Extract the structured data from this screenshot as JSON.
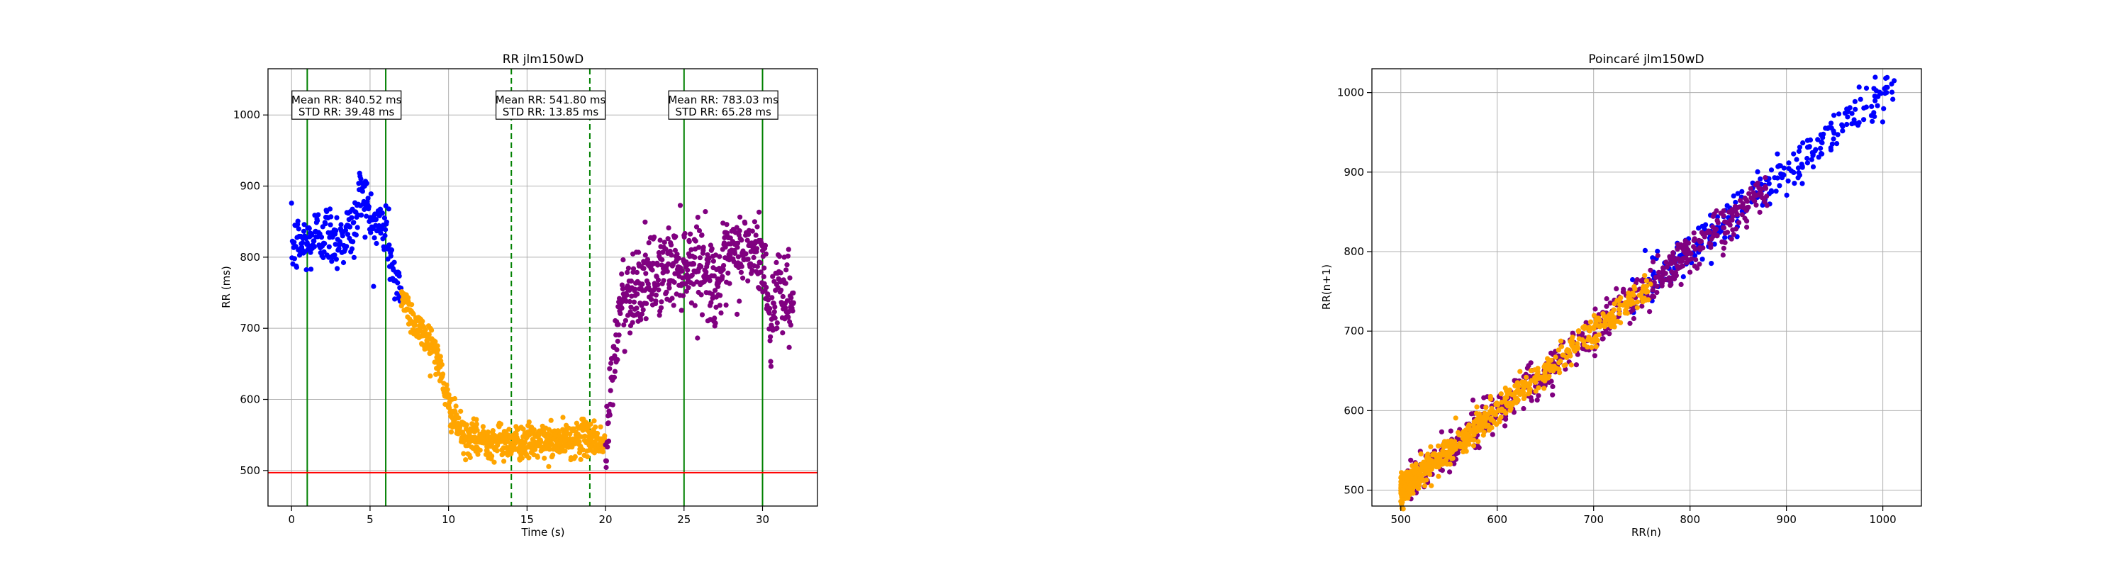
{
  "chart_data": [
    {
      "type": "scatter",
      "title": "RR jlm150wD",
      "xlabel": "Time (s)",
      "ylabel": "RR (ms)",
      "xlim": [
        -1.5,
        33.5
      ],
      "ylim": [
        450,
        1065
      ],
      "xticks": [
        0,
        5,
        10,
        15,
        20,
        25,
        30
      ],
      "yticks": [
        500,
        600,
        700,
        800,
        900,
        1000
      ],
      "grid": true,
      "colors": {
        "phase1": "#0000ff",
        "phase2": "#ffa500",
        "phase3": "#800080",
        "solid_lines": "#008000",
        "threshold": "#ff0000"
      },
      "threshold_line": 497,
      "window_lines_solid": [
        1,
        6,
        25,
        30
      ],
      "window_lines_dashed": [
        14,
        19
      ],
      "annotations": [
        {
          "x": 3.5,
          "y": 1010,
          "line1": "Mean RR: 840.52 ms",
          "line2": "STD RR: 39.48 ms"
        },
        {
          "x": 16.5,
          "y": 1010,
          "line1": "Mean RR: 541.80 ms",
          "line2": "STD RR: 13.85 ms"
        },
        {
          "x": 27.5,
          "y": 1010,
          "line1": "Mean RR: 783.03 ms",
          "line2": "STD RR: 65.28 ms"
        }
      ],
      "series": [
        {
          "color": "#0000ff",
          "x_range": [
            0,
            7
          ],
          "baseline": [
            [
              0,
              815
            ],
            [
              1,
              820
            ],
            [
              2,
              835
            ],
            [
              3,
              825
            ],
            [
              4,
              840
            ],
            [
              4.5,
              905
            ],
            [
              5,
              850
            ],
            [
              6,
              840
            ],
            [
              6.5,
              780
            ],
            [
              7,
              730
            ]
          ],
          "noise": 22,
          "n": 260
        },
        {
          "color": "#ffa500",
          "x_range": [
            7,
            20
          ],
          "baseline": [
            [
              7,
              750
            ],
            [
              8,
              700
            ],
            [
              9,
              680
            ],
            [
              9.5,
              640
            ],
            [
              10,
              590
            ],
            [
              11,
              545
            ],
            [
              14,
              540
            ],
            [
              17,
              540
            ],
            [
              19,
              548
            ],
            [
              20,
              535
            ]
          ],
          "noise": 12,
          "n": 700
        },
        {
          "color": "#800080",
          "x_range": [
            20,
            32
          ],
          "baseline": [
            [
              20,
              520
            ],
            [
              20.5,
              650
            ],
            [
              21,
              740
            ],
            [
              22,
              760
            ],
            [
              23,
              770
            ],
            [
              24,
              785
            ],
            [
              25,
              790
            ],
            [
              26,
              795
            ],
            [
              27,
              760
            ],
            [
              28,
              800
            ],
            [
              29,
              810
            ],
            [
              30,
              800
            ],
            [
              30.5,
              700
            ],
            [
              31,
              770
            ],
            [
              32,
              730
            ]
          ],
          "noise": 28,
          "n": 600
        }
      ]
    },
    {
      "type": "scatter",
      "title": "Poincaré jlm150wD",
      "xlabel": "RR(n)",
      "ylabel": "RR(n+1)",
      "xlim": [
        470,
        1040
      ],
      "ylim": [
        480,
        1030
      ],
      "xticks": [
        500,
        600,
        700,
        800,
        900,
        1000
      ],
      "yticks": [
        500,
        600,
        700,
        800,
        900,
        1000
      ],
      "grid": true,
      "series": [
        {
          "color": "#0000ff",
          "x_range": [
            740,
            1015
          ],
          "noise": 14,
          "n": 260
        },
        {
          "color": "#800080",
          "x_range": [
            500,
            880
          ],
          "noise": 12,
          "n": 600
        },
        {
          "color": "#ffa500",
          "x_range": [
            500,
            760
          ],
          "noise": 9,
          "n": 700
        }
      ]
    }
  ]
}
